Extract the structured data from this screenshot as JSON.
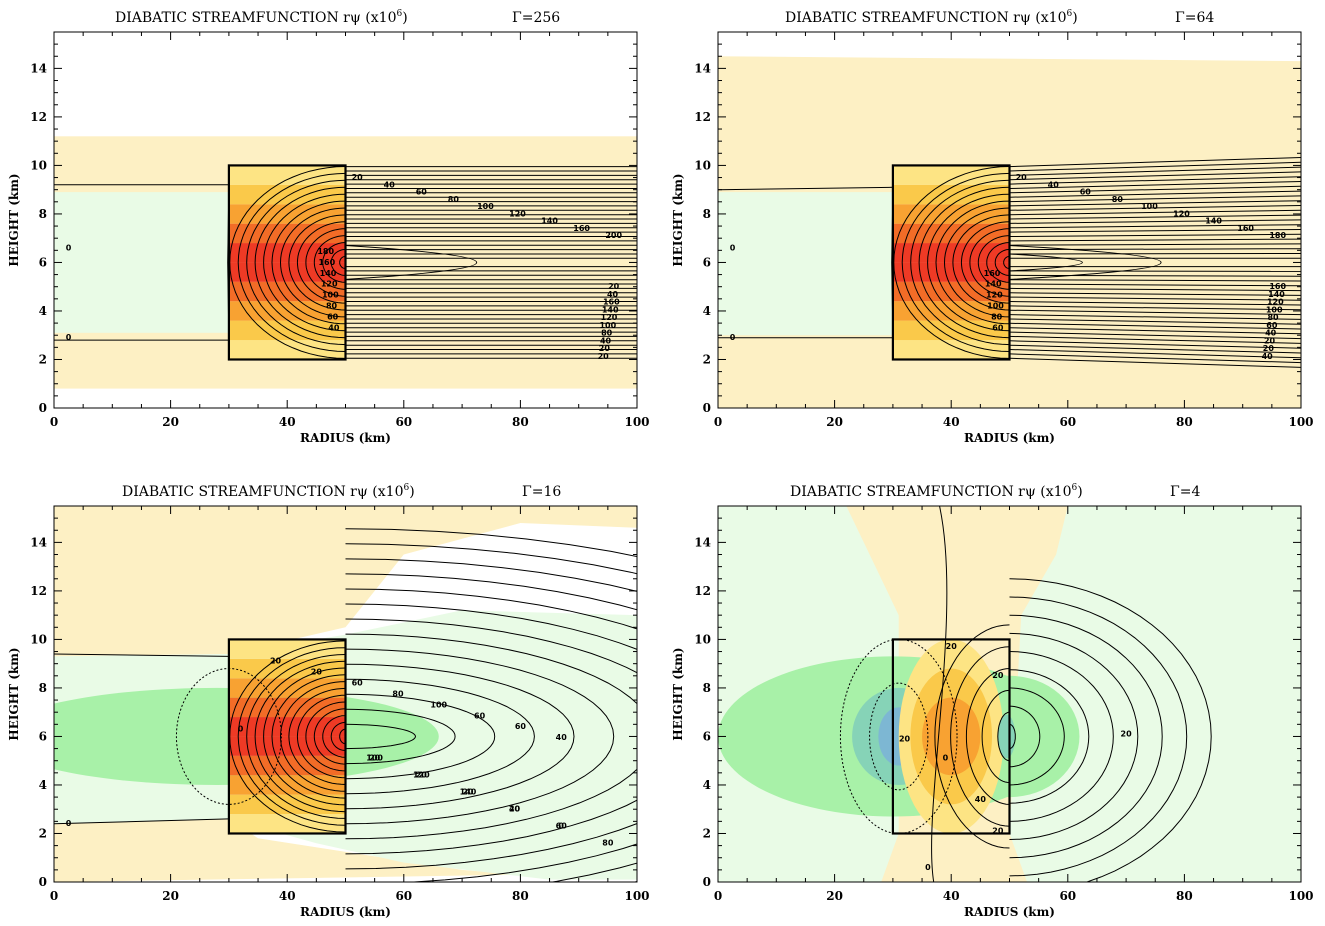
{
  "colors": {
    "tan": "#fdf0c4",
    "light_green": "#e9fbe6",
    "green": "#a8f1a8",
    "blue_green": "#86d3b7",
    "blue": "#7db7d3",
    "yellow": "#fde484",
    "gold": "#fac94a",
    "orange": "#f8a232",
    "red_orange": "#f26c27",
    "red": "#ee3a25",
    "frame": "#000000"
  },
  "chart_data": [
    {
      "type": "contour",
      "title": "DIABATIC STREAMFUNCTION rψ (x10",
      "title_exp": "6",
      "title_close": ")",
      "gamma_label": "Γ=256",
      "xlabel": "RADIUS (km)",
      "ylabel": "HEIGHT (km)",
      "xlim": [
        0,
        100
      ],
      "ylim": [
        0,
        15.5
      ],
      "xticks": [
        "0",
        "20",
        "40",
        "60",
        "80",
        "100"
      ],
      "yticks": [
        "0",
        "2",
        "4",
        "6",
        "8",
        "10",
        "12",
        "14"
      ],
      "heating_region": {
        "r": [
          30,
          50
        ],
        "z": [
          2,
          10
        ]
      },
      "contour_labels": [
        "0",
        "0",
        "20",
        "40",
        "60",
        "80",
        "100",
        "120",
        "140",
        "160",
        "200",
        "20",
        "40",
        "160",
        "140",
        "120",
        "100",
        "80",
        "40",
        "20",
        "20",
        "40",
        "60",
        "80",
        "100",
        "120",
        "140",
        "160",
        "180"
      ]
    },
    {
      "type": "contour",
      "title": "DIABATIC STREAMFUNCTION rψ (x10",
      "title_exp": "6",
      "title_close": ")",
      "gamma_label": "Γ=64",
      "xlabel": "RADIUS (km)",
      "ylabel": "HEIGHT (km)",
      "xlim": [
        0,
        100
      ],
      "ylim": [
        0,
        15.5
      ],
      "xticks": [
        "0",
        "20",
        "40",
        "60",
        "80",
        "100"
      ],
      "yticks": [
        "0",
        "2",
        "4",
        "6",
        "8",
        "10",
        "12",
        "14"
      ],
      "heating_region": {
        "r": [
          30,
          50
        ],
        "z": [
          2,
          10
        ]
      },
      "contour_labels": [
        "0",
        "0",
        "20",
        "40",
        "60",
        "80",
        "100",
        "120",
        "140",
        "160",
        "180",
        "160",
        "140",
        "120",
        "100",
        "80",
        "60",
        "40",
        "20",
        "20",
        "40",
        "60",
        "80",
        "100",
        "120",
        "140",
        "160"
      ]
    },
    {
      "type": "contour",
      "title": "DIABATIC STREAMFUNCTION rψ (x10",
      "title_exp": "6",
      "title_close": ")",
      "gamma_label": "Γ=16",
      "xlabel": "RADIUS (km)",
      "ylabel": "HEIGHT (km)",
      "xlim": [
        0,
        100
      ],
      "ylim": [
        0,
        15.5
      ],
      "xticks": [
        "0",
        "20",
        "40",
        "60",
        "80",
        "100"
      ],
      "yticks": [
        "0",
        "2",
        "4",
        "6",
        "8",
        "10",
        "12",
        "14"
      ],
      "heating_region": {
        "r": [
          30,
          50
        ],
        "z": [
          2,
          10
        ]
      },
      "contour_labels": [
        "0",
        "0",
        "20",
        "20",
        "60",
        "80",
        "100",
        "60",
        "60",
        "40",
        "20",
        "20",
        "20",
        "40",
        "60",
        "80",
        "100",
        "120",
        "140",
        "20",
        "0"
      ]
    },
    {
      "type": "contour",
      "title": "DIABATIC STREAMFUNCTION rψ (x10",
      "title_exp": "6",
      "title_close": ")",
      "gamma_label": "Γ=4",
      "xlabel": "RADIUS (km)",
      "ylabel": "HEIGHT (km)",
      "xlim": [
        0,
        100
      ],
      "ylim": [
        0,
        15.5
      ],
      "xticks": [
        "0",
        "20",
        "40",
        "60",
        "80",
        "100"
      ],
      "yticks": [
        "0",
        "2",
        "4",
        "6",
        "8",
        "10",
        "12",
        "14"
      ],
      "heating_region": {
        "r": [
          30,
          50
        ],
        "z": [
          2,
          10
        ]
      },
      "contour_labels": [
        "0",
        "0",
        "20",
        "20",
        "20",
        "40",
        "20",
        "20"
      ]
    }
  ]
}
